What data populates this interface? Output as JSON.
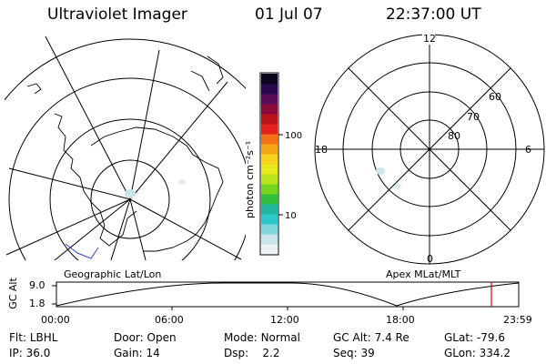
{
  "header": {
    "instrument": "Ultraviolet Imager",
    "date": "01 Jul 07",
    "time": "22:37:00 UT"
  },
  "colorbar": {
    "unit_label": "photon cm⁻²s⁻¹",
    "tick_100": "100",
    "tick_10": "10",
    "colors": [
      "#e9f1f3",
      "#c7e5ea",
      "#7fd6dd",
      "#2ec7c9",
      "#22b6a1",
      "#2fbf3a",
      "#74d41e",
      "#b9e31a",
      "#e6ea1b",
      "#f8d21b",
      "#f7a519",
      "#f47215",
      "#e2221b",
      "#b8121b",
      "#8a0a3a",
      "#5a0b58",
      "#2a0a4e",
      "#0b0520"
    ]
  },
  "geo_panel": {
    "label": "Geographic Lat/Lon"
  },
  "apex_panel": {
    "label": "Apex MLat/MLT",
    "mlt_12": "12",
    "mlt_18": "18",
    "mlt_6": "6",
    "mlt_0": "0",
    "mlat_60": "60",
    "mlat_70": "70",
    "mlat_80": "80"
  },
  "altitude_plot": {
    "y_axis_label": "GC Alt",
    "y_tick_top": "9.0",
    "y_tick_bottom": "1.8",
    "x_ticks": [
      "00:00",
      "06:00",
      "12:00",
      "18:00",
      "23:59"
    ],
    "current_time_color": "#e00000"
  },
  "info": {
    "filter_label": "Flt:",
    "filter_value": "LBHL",
    "door_label": "Door:",
    "door_value": "Open",
    "mode_label": "Mode:",
    "mode_value": "Normal",
    "gcalt_label": "GC Alt:",
    "gcalt_value": "7.4 Re",
    "glat_label": "GLat:",
    "glat_value": "-79.6",
    "ip_label": "IP:",
    "ip_value": "36.0",
    "gain_label": "Gain:",
    "gain_value": "14",
    "dsp_label": "Dsp:",
    "dsp_value": "2.2",
    "seq_label": "Seq:",
    "seq_value": "39",
    "glon_label": "GLon:",
    "glon_value": "334.2"
  }
}
